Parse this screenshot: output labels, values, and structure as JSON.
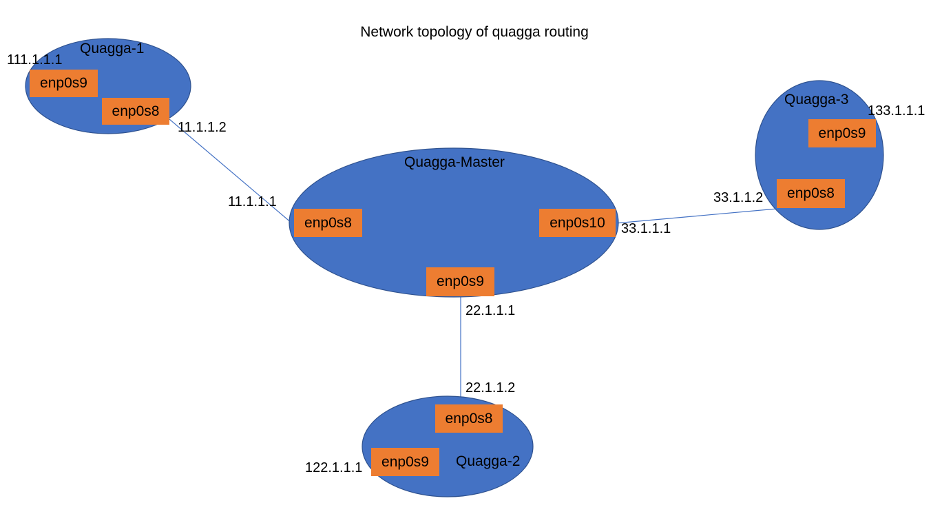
{
  "title": "Network topology of quagga routing",
  "colors": {
    "node_fill": "#4472c4",
    "node_stroke": "#2f528f",
    "interface_fill": "#ed7d31",
    "link_color": "#4472c4"
  },
  "nodes": {
    "quagga1": {
      "name": "Quagga-1",
      "interfaces": {
        "enp0s9": "enp0s9",
        "enp0s8": "enp0s8"
      },
      "ips": {
        "enp0s9": "111.1.1.1",
        "enp0s8": "11.1.1.2"
      }
    },
    "master": {
      "name": "Quagga-Master",
      "interfaces": {
        "enp0s8": "enp0s8",
        "enp0s10": "enp0s10",
        "enp0s9": "enp0s9"
      },
      "ips": {
        "enp0s8": "11.1.1.1",
        "enp0s10": "33.1.1.1",
        "enp0s9": "22.1.1.1"
      }
    },
    "quagga3": {
      "name": "Quagga-3",
      "interfaces": {
        "enp0s9": "enp0s9",
        "enp0s8": "enp0s8"
      },
      "ips": {
        "enp0s9": "133.1.1.1",
        "enp0s8": "33.1.1.2"
      }
    },
    "quagga2": {
      "name": "Quagga-2",
      "interfaces": {
        "enp0s8": "enp0s8",
        "enp0s9": "enp0s9"
      },
      "ips": {
        "enp0s8": "22.1.1.2",
        "enp0s9": "122.1.1.1"
      }
    }
  }
}
